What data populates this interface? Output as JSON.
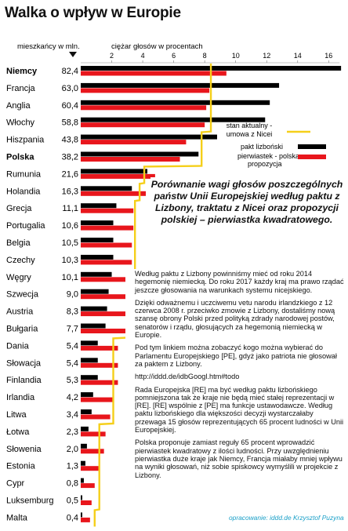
{
  "title": "Walka o wpływ w Europie",
  "population_header": "mieszkańcy w mln.",
  "axis_title": "ciężar głosów w procentach",
  "legend": {
    "current_label_1": "stan aktualny -",
    "current_label_2": "umowa z Nicei",
    "lisbon_label": "pakt lizboński",
    "sqrt_label_1": "pierwiastek - polska",
    "sqrt_label_2": "propozycja"
  },
  "colors": {
    "lisbon": "#000000",
    "sqrt": "#e8161c",
    "nice": "#f5cf1a",
    "credit": "#1ba0c8"
  },
  "heading": "Porównanie wagi głosów poszczególnych państw Unii Europejskiej według paktu z Lizbony, traktatu z Nicei oraz propozycji polskiej – pierwiastka kwadratowego.",
  "paragraphs": [
    "Według paktu z Lizbony powinniśmy mieć od roku 2014 hegemonię niemiecką. Do roku 2017 każdy kraj ma prawo rządać jeszcze głosowania na warunkach systemu nicejskiego.",
    "Dzięki odważnemu i uczciwemu vetu narodu irlandzkiego z 12 czerwca 2008 r. przeciwko zmowie z Lizbony, dostaliśmy nową szansę obrony Polski przed polityką zdrady narodowej postów, senatorów i rządu, głosujących za hegemonią niemiecką w Europie.",
    "Pod tym linkiem można zobaczyć kogo można wybierać do Parlamentu Europejskiego [PE], gdyż jako patriota nie głosował za paktem z Lizbony.",
    "http://iddd.de/idbGoogl.htm#todo",
    "Rada Europejska [RE] ma być według paktu lizbońskiego pomniejszona tak że kraje nie będą mieć stałej reprezentacji w [RE]. [RE] wspólnie z [PE] ma funkcje ustawodawcze. Według paktu lizbońskiego dla większości decyzji wystarczałaby przewaga 15 głosów reprezentujących 65 procent ludności w Unii Europejskiej.",
    "Polska proponuje zamiast reguły 65 procent wprowadzić pierwiastek kwadratowy z ilości ludności. Przy uwzględnieniu pierwiastka duże kraje jak Niemcy, Francja miałaby mniej wpływu na wyniki głosowań, niż sobie spiskowcy wymyślili w projekcie z Lizbony."
  ],
  "credit": "opracowanie: iddd.de  Krzysztof Puzyna",
  "chart_data": {
    "type": "bar",
    "xlim": [
      0,
      16.5
    ],
    "x_ticks": [
      2,
      4,
      6,
      8,
      10,
      12,
      14,
      16
    ],
    "categories": [
      "Niemcy",
      "Francja",
      "Anglia",
      "Włochy",
      "Hiszpania",
      "Polska",
      "Rumunia",
      "Holandia",
      "Grecja",
      "Portugalia",
      "Belgia",
      "Czechy",
      "Węgry",
      "Szwecja",
      "Austria",
      "Bułgaria",
      "Dania",
      "Słowacja",
      "Finlandia",
      "Irlandia",
      "Litwa",
      "Łotwa",
      "Słowenia",
      "Estonia",
      "Cypr",
      "Luksemburg",
      "Malta"
    ],
    "bold_categories": [
      "Niemcy",
      "Polska"
    ],
    "population": [
      "82,4",
      "63,0",
      "60,4",
      "58,8",
      "43,8",
      "38,2",
      "21,6",
      "16,3",
      "11,1",
      "10,6",
      "10,5",
      "10,3",
      "10,1",
      "9,0",
      "8,3",
      "7,7",
      "5,4",
      "5,4",
      "5,3",
      "4,2",
      "3,4",
      "2,3",
      "2,0",
      "1,3",
      "0,8",
      "0,5",
      "0,4"
    ],
    "series": [
      {
        "name": "pakt lizboński",
        "values": [
          16.8,
          12.8,
          12.2,
          11.9,
          8.8,
          7.6,
          4.3,
          3.3,
          2.3,
          2.1,
          2.1,
          2.1,
          2.0,
          1.8,
          1.7,
          1.6,
          1.1,
          1.1,
          1.1,
          0.8,
          0.7,
          0.5,
          0.4,
          0.3,
          0.2,
          0.1,
          0.1
        ]
      },
      {
        "name": "pierwiastek - polska propozycja",
        "values": [
          9.4,
          8.3,
          8.1,
          8.0,
          6.8,
          6.4,
          4.8,
          4.2,
          3.4,
          3.4,
          3.3,
          3.3,
          3.3,
          3.1,
          3.0,
          2.9,
          2.4,
          2.4,
          2.4,
          2.1,
          1.9,
          1.6,
          1.5,
          1.2,
          0.9,
          0.7,
          0.6
        ]
      },
      {
        "name": "stan aktualny - umowa z Nicei",
        "values": [
          8.4,
          8.4,
          8.4,
          8.4,
          7.8,
          7.8,
          4.1,
          3.8,
          3.5,
          3.5,
          3.5,
          3.5,
          3.5,
          3.0,
          3.0,
          3.0,
          2.1,
          2.1,
          2.1,
          2.1,
          2.1,
          1.2,
          1.2,
          1.2,
          1.2,
          1.2,
          0.9
        ]
      }
    ]
  }
}
